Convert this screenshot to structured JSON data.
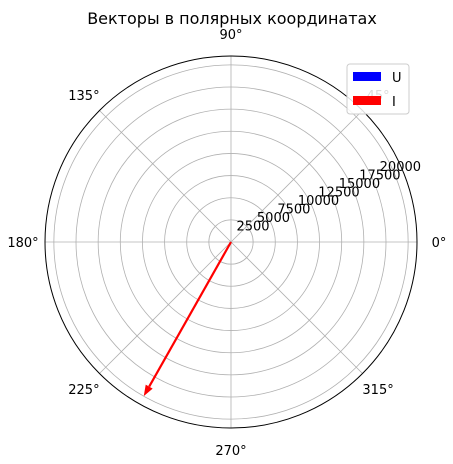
{
  "chart_data": {
    "type": "polar-vector",
    "title": "Векторы в полярных координатах",
    "angle_ticks": [
      "0°",
      "45°",
      "90°",
      "135°",
      "180°",
      "225°",
      "270°",
      "315°"
    ],
    "radial_ticks": [
      "2500",
      "5000",
      "7500",
      "10000",
      "12500",
      "15000",
      "17500",
      "20000"
    ],
    "r_range": [
      0,
      21000
    ],
    "grid": true,
    "legend_position": "top-right",
    "series": [
      {
        "name": "U",
        "color": "#0000ff",
        "angle_deg": 0,
        "magnitude": 0
      },
      {
        "name": "I",
        "color": "#ff0000",
        "angle_deg": 240.5,
        "magnitude": 20000
      }
    ]
  }
}
